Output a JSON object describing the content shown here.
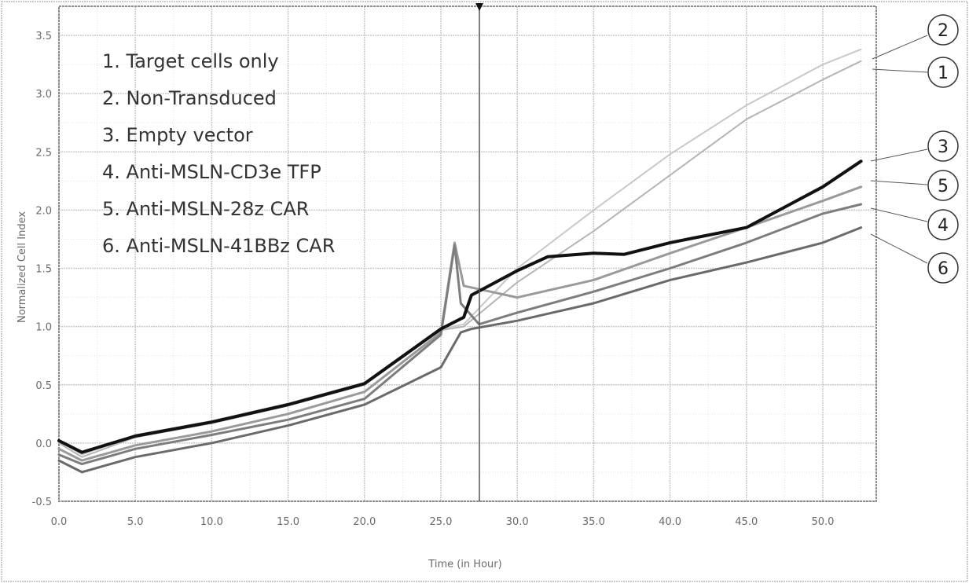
{
  "chart_data": {
    "type": "line",
    "title": "",
    "xlabel": "Time (in Hour)",
    "ylabel": "Normalized Cell Index",
    "xlim": [
      0,
      53.5
    ],
    "ylim": [
      -0.5,
      3.75
    ],
    "x_ticks": [
      "0.0",
      "5.0",
      "10.0",
      "15.0",
      "20.0",
      "25.0",
      "30.0",
      "35.0",
      "40.0",
      "45.0",
      "50.0"
    ],
    "y_ticks": [
      "-0.5",
      "0.0",
      "0.5",
      "1.0",
      "1.5",
      "2.0",
      "2.5",
      "3.0",
      "3.5"
    ],
    "grid": true,
    "legend_position": "top-left",
    "legend": [
      "1. Target cells only",
      "2. Non-Transduced",
      "3. Empty vector",
      "4. Anti-MSLN-CD3e TFP",
      "5. Anti-MSLN-28z CAR",
      "6. Anti-MSLN-41BBz CAR"
    ],
    "series": [
      {
        "id": "1",
        "x": [
          0,
          1.5,
          5,
          10,
          15,
          20,
          25,
          26.5,
          30,
          35,
          40,
          45,
          50,
          52.5
        ],
        "y": [
          0.0,
          -0.12,
          0.05,
          0.17,
          0.32,
          0.5,
          0.97,
          1.0,
          1.38,
          1.82,
          2.3,
          2.78,
          3.12,
          3.28
        ]
      },
      {
        "id": "2",
        "x": [
          0,
          1.5,
          5,
          10,
          15,
          20,
          25,
          26.5,
          30,
          35,
          40,
          45,
          50,
          52.5
        ],
        "y": [
          0.02,
          -0.1,
          0.07,
          0.19,
          0.34,
          0.52,
          0.98,
          1.02,
          1.5,
          2.0,
          2.48,
          2.9,
          3.25,
          3.38
        ]
      },
      {
        "id": "3",
        "x": [
          0,
          1.5,
          5,
          10,
          15,
          20,
          25,
          26.5,
          27,
          30,
          32,
          35,
          37,
          40,
          45,
          50,
          52.5
        ],
        "y": [
          0.02,
          -0.08,
          0.06,
          0.18,
          0.33,
          0.51,
          0.98,
          1.08,
          1.27,
          1.48,
          1.6,
          1.63,
          1.62,
          1.72,
          1.85,
          2.2,
          2.42
        ]
      },
      {
        "id": "4",
        "x": [
          0,
          1.5,
          5,
          10,
          15,
          20,
          25,
          25.9,
          26.3,
          27.5,
          30,
          35,
          40,
          45,
          50,
          52.5
        ],
        "y": [
          -0.1,
          -0.18,
          -0.05,
          0.07,
          0.2,
          0.38,
          0.93,
          1.7,
          1.2,
          1.02,
          1.12,
          1.3,
          1.5,
          1.72,
          1.97,
          2.05
        ]
      },
      {
        "id": "5",
        "x": [
          0,
          1.5,
          5,
          10,
          15,
          20,
          25,
          25.9,
          26.5,
          30,
          35,
          40,
          45,
          50,
          52.5
        ],
        "y": [
          -0.05,
          -0.15,
          -0.02,
          0.1,
          0.25,
          0.44,
          0.95,
          1.72,
          1.35,
          1.25,
          1.4,
          1.63,
          1.85,
          2.08,
          2.2
        ]
      },
      {
        "id": "6",
        "x": [
          0,
          1.5,
          5,
          10,
          15,
          20,
          25,
          26.3,
          27,
          30,
          35,
          40,
          45,
          50,
          52.5
        ],
        "y": [
          -0.15,
          -0.25,
          -0.12,
          0.0,
          0.15,
          0.33,
          0.65,
          0.95,
          0.98,
          1.05,
          1.2,
          1.4,
          1.55,
          1.72,
          1.85
        ]
      }
    ],
    "callouts": [
      "2",
      "1",
      "3",
      "5",
      "4",
      "6"
    ]
  },
  "style": {
    "series_colors": [
      "#b5b5b5",
      "#c8c8c8",
      "#111111",
      "#7d7d7d",
      "#9a9a9a",
      "#6a6a6a"
    ],
    "series_widths": [
      2,
      2,
      4,
      3,
      3,
      3
    ],
    "grid_color": "#c9c9c9",
    "axis_color": "#8c8c8c"
  }
}
